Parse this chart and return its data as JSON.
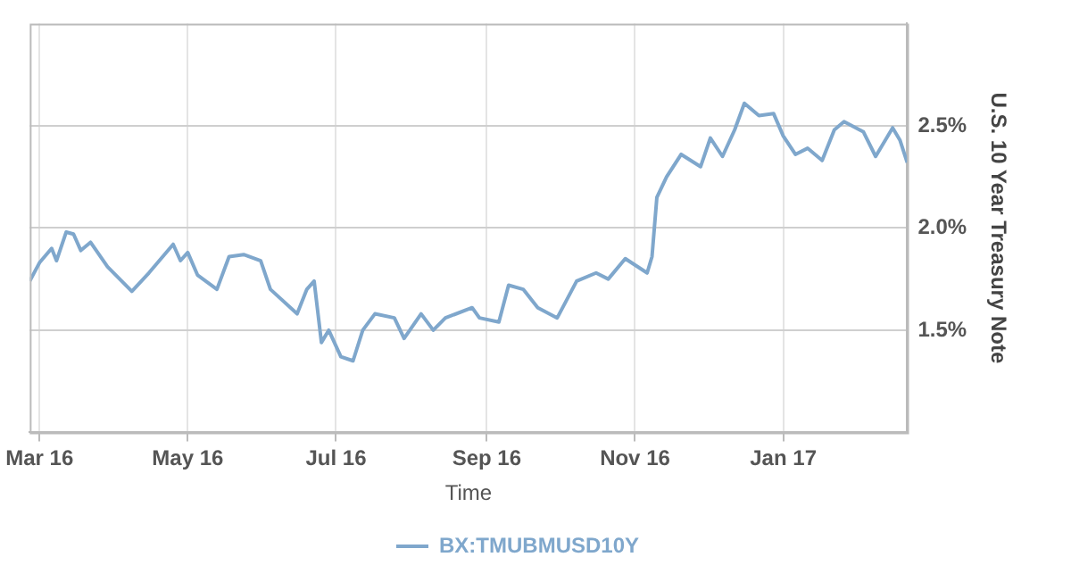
{
  "chart_data": {
    "type": "line",
    "xlabel": "Time",
    "y2label": "U.S. 10 Year Treasury Note",
    "x": [
      "2016-02-26",
      "2016-03-01",
      "2016-03-06",
      "2016-03-08",
      "2016-03-12",
      "2016-03-15",
      "2016-03-18",
      "2016-03-22",
      "2016-03-29",
      "2016-04-08",
      "2016-04-15",
      "2016-04-25",
      "2016-04-28",
      "2016-05-01",
      "2016-05-05",
      "2016-05-13",
      "2016-05-18",
      "2016-05-24",
      "2016-05-31",
      "2016-06-04",
      "2016-06-15",
      "2016-06-19",
      "2016-06-22",
      "2016-06-25",
      "2016-06-28",
      "2016-07-03",
      "2016-07-08",
      "2016-07-12",
      "2016-07-17",
      "2016-07-25",
      "2016-07-29",
      "2016-08-05",
      "2016-08-10",
      "2016-08-15",
      "2016-08-26",
      "2016-08-29",
      "2016-09-06",
      "2016-09-10",
      "2016-09-16",
      "2016-09-22",
      "2016-09-30",
      "2016-10-08",
      "2016-10-16",
      "2016-10-21",
      "2016-10-28",
      "2016-11-06",
      "2016-11-08",
      "2016-11-10",
      "2016-11-14",
      "2016-11-20",
      "2016-11-28",
      "2016-12-02",
      "2016-12-07",
      "2016-12-12",
      "2016-12-16",
      "2016-12-22",
      "2016-12-28",
      "2017-01-01",
      "2017-01-06",
      "2017-01-11",
      "2017-01-17",
      "2017-01-22",
      "2017-01-26",
      "2017-02-03",
      "2017-02-08",
      "2017-02-15",
      "2017-02-18",
      "2017-02-21"
    ],
    "series": [
      {
        "name": "BX:TMUBMUSD10Y",
        "color": "#7fa7cc",
        "axis": "y2",
        "values": [
          1.74,
          1.83,
          1.9,
          1.84,
          1.98,
          1.97,
          1.89,
          1.93,
          1.81,
          1.69,
          1.78,
          1.92,
          1.84,
          1.88,
          1.77,
          1.7,
          1.86,
          1.87,
          1.84,
          1.7,
          1.58,
          1.7,
          1.74,
          1.44,
          1.5,
          1.37,
          1.35,
          1.5,
          1.58,
          1.56,
          1.46,
          1.58,
          1.5,
          1.56,
          1.61,
          1.56,
          1.54,
          1.72,
          1.7,
          1.61,
          1.56,
          1.74,
          1.78,
          1.75,
          1.85,
          1.78,
          1.86,
          2.15,
          2.25,
          2.36,
          2.3,
          2.44,
          2.35,
          2.48,
          2.61,
          2.55,
          2.56,
          2.45,
          2.36,
          2.39,
          2.33,
          2.48,
          2.52,
          2.47,
          2.35,
          2.49,
          2.43,
          2.32
        ]
      }
    ],
    "xlim": [
      "2016-02-26",
      "2017-02-21"
    ],
    "xticks": [
      {
        "value": "2016-03-01",
        "label": "Mar 16"
      },
      {
        "value": "2016-05-01",
        "label": "May 16"
      },
      {
        "value": "2016-07-01",
        "label": "Jul 16"
      },
      {
        "value": "2016-09-01",
        "label": "Sep 16"
      },
      {
        "value": "2016-11-01",
        "label": "Nov 16"
      },
      {
        "value": "2017-01-01",
        "label": "Jan 17"
      }
    ],
    "y2lim": [
      1.0,
      3.0
    ],
    "y2ticks": [
      {
        "value": 1.5,
        "label": "1.5%"
      },
      {
        "value": 2.0,
        "label": "2.0%"
      },
      {
        "value": 2.5,
        "label": "2.5%"
      }
    ],
    "grid": true,
    "legend": "bottom",
    "marker": "none",
    "line_style": "solid"
  }
}
